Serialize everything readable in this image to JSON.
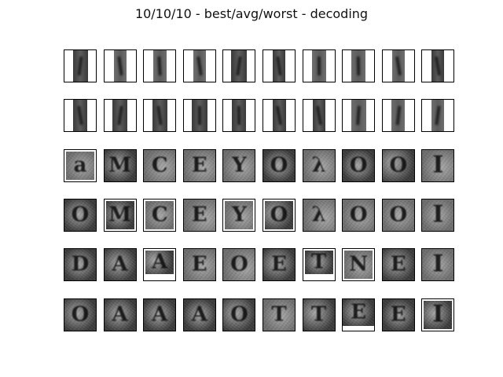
{
  "title": "10/10/10 - best/avg/worst - decoding",
  "colors": {
    "border": "#000000",
    "thumbnail_dark": "#3a3a3a",
    "thumbnail_mid": "#6d6d6d",
    "thumbnail_light": "#a8a8a8"
  },
  "grid": {
    "rows": 6,
    "columns": 10,
    "row_kinds": [
      "narrow-strip",
      "narrow-strip",
      "letter",
      "letter",
      "letter",
      "letter"
    ],
    "images": [
      [
        "strip",
        "strip",
        "strip",
        "strip",
        "strip",
        "strip",
        "strip",
        "strip",
        "strip",
        "strip"
      ],
      [
        "strip",
        "strip",
        "strip",
        "strip",
        "strip",
        "strip",
        "strip",
        "strip",
        "strip",
        "strip"
      ],
      [
        "a",
        "M",
        "C",
        "E",
        "Y",
        "O",
        "λ",
        "O",
        "O",
        "I"
      ],
      [
        "O",
        "M",
        "C",
        "E",
        "Y",
        "O",
        "λ",
        "O",
        "O",
        "I"
      ],
      [
        "D",
        "A",
        "A",
        "E",
        "O",
        "E",
        "T",
        "N",
        "E",
        "I"
      ],
      [
        "O",
        "A",
        "A",
        "A",
        "O",
        "T",
        "T",
        "E",
        "E",
        "I"
      ]
    ]
  }
}
